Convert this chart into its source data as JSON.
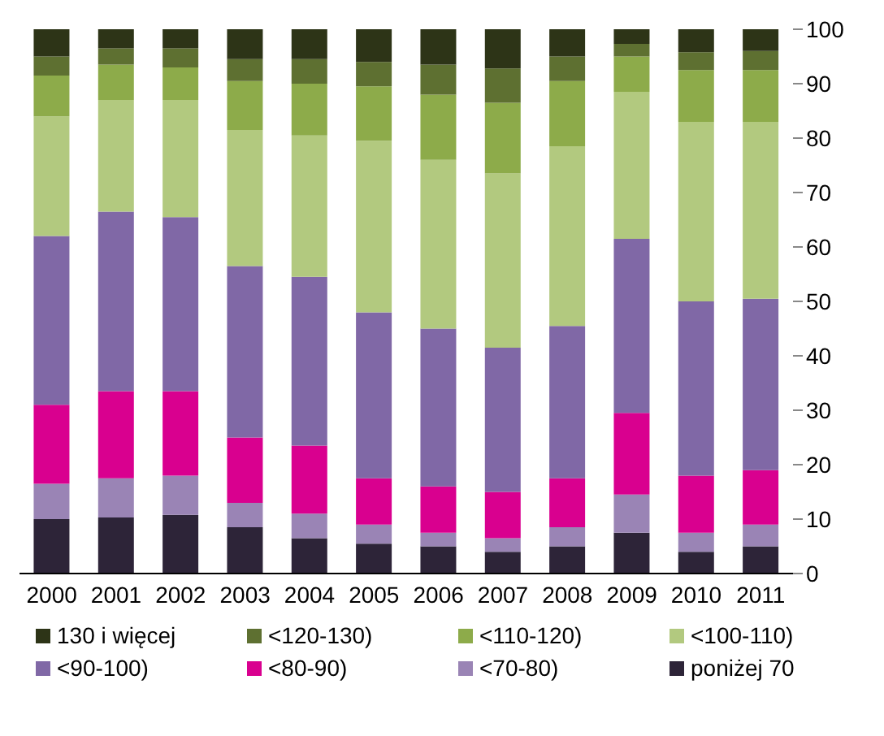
{
  "chart_data": {
    "type": "bar",
    "stacked": true,
    "categories": [
      "2000",
      "2001",
      "2002",
      "2003",
      "2004",
      "2005",
      "2006",
      "2007",
      "2008",
      "2009",
      "2010",
      "2011"
    ],
    "series": [
      {
        "name": "poniżej 70",
        "color": "#2d2438",
        "values": [
          10,
          10.3,
          10.8,
          8.5,
          6.5,
          5.5,
          5,
          4,
          5,
          7.5,
          4,
          5
        ]
      },
      {
        "name": "<70-80)",
        "color": "#9a84b5",
        "values": [
          6.5,
          7.2,
          7.2,
          4.5,
          4.5,
          3.5,
          2.5,
          2.5,
          3.5,
          7,
          3.5,
          4
        ]
      },
      {
        "name": "<80-90)",
        "color": "#d9008f",
        "values": [
          14.5,
          16,
          15.5,
          12,
          12.5,
          8.5,
          8.5,
          8.5,
          9,
          15,
          10.5,
          10
        ]
      },
      {
        "name": "<90-100)",
        "color": "#8068a6",
        "values": [
          31,
          33,
          32,
          31.5,
          31,
          30.5,
          29,
          26.5,
          28,
          32,
          32,
          31.5
        ]
      },
      {
        "name": "<100-110)",
        "color": "#b2c97f",
        "values": [
          22,
          20.5,
          21.5,
          25,
          26,
          31.5,
          31,
          32,
          33,
          27,
          33,
          32.5
        ]
      },
      {
        "name": "<110-120)",
        "color": "#8dab4a",
        "values": [
          7.5,
          6.5,
          6,
          9,
          9.5,
          10,
          12,
          13,
          12,
          6.5,
          9.5,
          9.5
        ]
      },
      {
        "name": "<120-130)",
        "color": "#5e7031",
        "values": [
          3.5,
          3,
          3.5,
          4,
          4.5,
          4.5,
          5.5,
          6.3,
          4.5,
          2.3,
          3.3,
          3.5
        ]
      },
      {
        "name": "130 i więcej",
        "color": "#2d3417",
        "values": [
          5,
          3.5,
          3.5,
          5.5,
          5.5,
          6,
          6.5,
          7.2,
          5,
          2.7,
          4.2,
          4
        ]
      }
    ],
    "ylim": [
      0,
      100
    ],
    "yticks": [
      0,
      10,
      20,
      30,
      40,
      50,
      60,
      70,
      80,
      90,
      100
    ],
    "grid": false,
    "legend": "bottom"
  }
}
